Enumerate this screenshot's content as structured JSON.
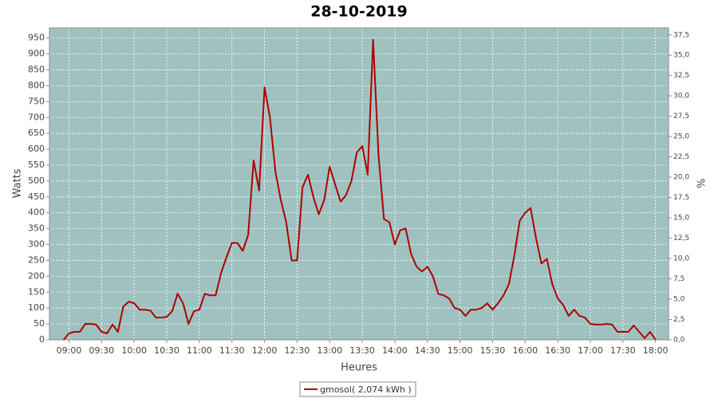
{
  "chart_data": {
    "type": "line",
    "title": "28-10-2019",
    "x_label": "Heures",
    "y_label": "Watts",
    "y2_label": "%",
    "x": [
      "08:55",
      "09:00",
      "09:05",
      "09:10",
      "09:15",
      "09:20",
      "09:25",
      "09:30",
      "09:35",
      "09:40",
      "09:45",
      "09:50",
      "09:55",
      "10:00",
      "10:05",
      "10:10",
      "10:15",
      "10:20",
      "10:25",
      "10:30",
      "10:35",
      "10:40",
      "10:45",
      "10:50",
      "10:55",
      "11:00",
      "11:05",
      "11:10",
      "11:15",
      "11:20",
      "11:25",
      "11:30",
      "11:35",
      "11:40",
      "11:45",
      "11:50",
      "11:55",
      "12:00",
      "12:05",
      "12:10",
      "12:15",
      "12:20",
      "12:25",
      "12:30",
      "12:35",
      "12:40",
      "12:45",
      "12:50",
      "12:55",
      "13:00",
      "13:05",
      "13:10",
      "13:15",
      "13:20",
      "13:25",
      "13:30",
      "13:35",
      "13:40",
      "13:45",
      "13:50",
      "13:55",
      "14:00",
      "14:05",
      "14:10",
      "14:15",
      "14:20",
      "14:25",
      "14:30",
      "14:35",
      "14:40",
      "14:45",
      "14:50",
      "14:55",
      "15:00",
      "15:05",
      "15:10",
      "15:15",
      "15:20",
      "15:25",
      "15:30",
      "15:35",
      "15:40",
      "15:45",
      "15:50",
      "15:55",
      "16:00",
      "16:05",
      "16:10",
      "16:15",
      "16:20",
      "16:25",
      "16:30",
      "16:35",
      "16:40",
      "16:45",
      "16:50",
      "16:55",
      "17:00",
      "17:05",
      "17:10",
      "17:15",
      "17:20",
      "17:25",
      "17:30",
      "17:35",
      "17:40",
      "17:45",
      "17:50",
      "17:55",
      "18:00"
    ],
    "series": [
      {
        "name": "gmosol( 2,074 kWh )",
        "color": "#b00000",
        "values": [
          0,
          20,
          25,
          25,
          50,
          50,
          48,
          25,
          20,
          48,
          25,
          105,
          120,
          115,
          95,
          95,
          92,
          70,
          70,
          72,
          90,
          145,
          115,
          50,
          90,
          95,
          145,
          140,
          140,
          210,
          260,
          305,
          305,
          280,
          330,
          565,
          470,
          795,
          700,
          530,
          440,
          370,
          250,
          250,
          480,
          520,
          450,
          395,
          440,
          545,
          490,
          435,
          455,
          500,
          590,
          610,
          520,
          945,
          580,
          380,
          370,
          300,
          345,
          350,
          270,
          230,
          215,
          230,
          200,
          145,
          140,
          130,
          100,
          95,
          75,
          95,
          95,
          100,
          115,
          95,
          115,
          140,
          175,
          265,
          375,
          400,
          415,
          320,
          240,
          255,
          175,
          130,
          110,
          75,
          95,
          75,
          70,
          50,
          48,
          48,
          50,
          48,
          25,
          25,
          25,
          45,
          25,
          5,
          25,
          0
        ]
      }
    ],
    "xlim": [
      "08:42",
      "18:12"
    ],
    "xticks": [
      "09:00",
      "09:30",
      "10:00",
      "10:30",
      "11:00",
      "11:30",
      "12:00",
      "12:30",
      "13:00",
      "13:30",
      "14:00",
      "14:30",
      "15:00",
      "15:30",
      "16:00",
      "16:30",
      "17:00",
      "17:30",
      "18:00"
    ],
    "ylim": [
      0,
      982
    ],
    "yticks": [
      0,
      50,
      100,
      150,
      200,
      250,
      300,
      350,
      400,
      450,
      500,
      550,
      600,
      650,
      700,
      750,
      800,
      850,
      900,
      950
    ],
    "y2lim": [
      0,
      38.36
    ],
    "y2ticks": [
      {
        "value": 0,
        "label": "0,0"
      },
      {
        "value": 2.5,
        "label": "2,5"
      },
      {
        "value": 5,
        "label": "5,0"
      },
      {
        "value": 7.5,
        "label": "7,5"
      },
      {
        "value": 10,
        "label": "10,0"
      },
      {
        "value": 12.5,
        "label": "12,5"
      },
      {
        "value": 15,
        "label": "15,0"
      },
      {
        "value": 17.5,
        "label": "17,5"
      },
      {
        "value": 20,
        "label": "20,0"
      },
      {
        "value": 22.5,
        "label": "22,5"
      },
      {
        "value": 25,
        "label": "25,0"
      },
      {
        "value": 27.5,
        "label": "27,5"
      },
      {
        "value": 30,
        "label": "30,0"
      },
      {
        "value": 32.5,
        "label": "32,5"
      },
      {
        "value": 35,
        "label": "35,0"
      },
      {
        "value": 37.5,
        "label": "37,5"
      }
    ],
    "grid": true,
    "plot_background": "#9fc2c1"
  }
}
